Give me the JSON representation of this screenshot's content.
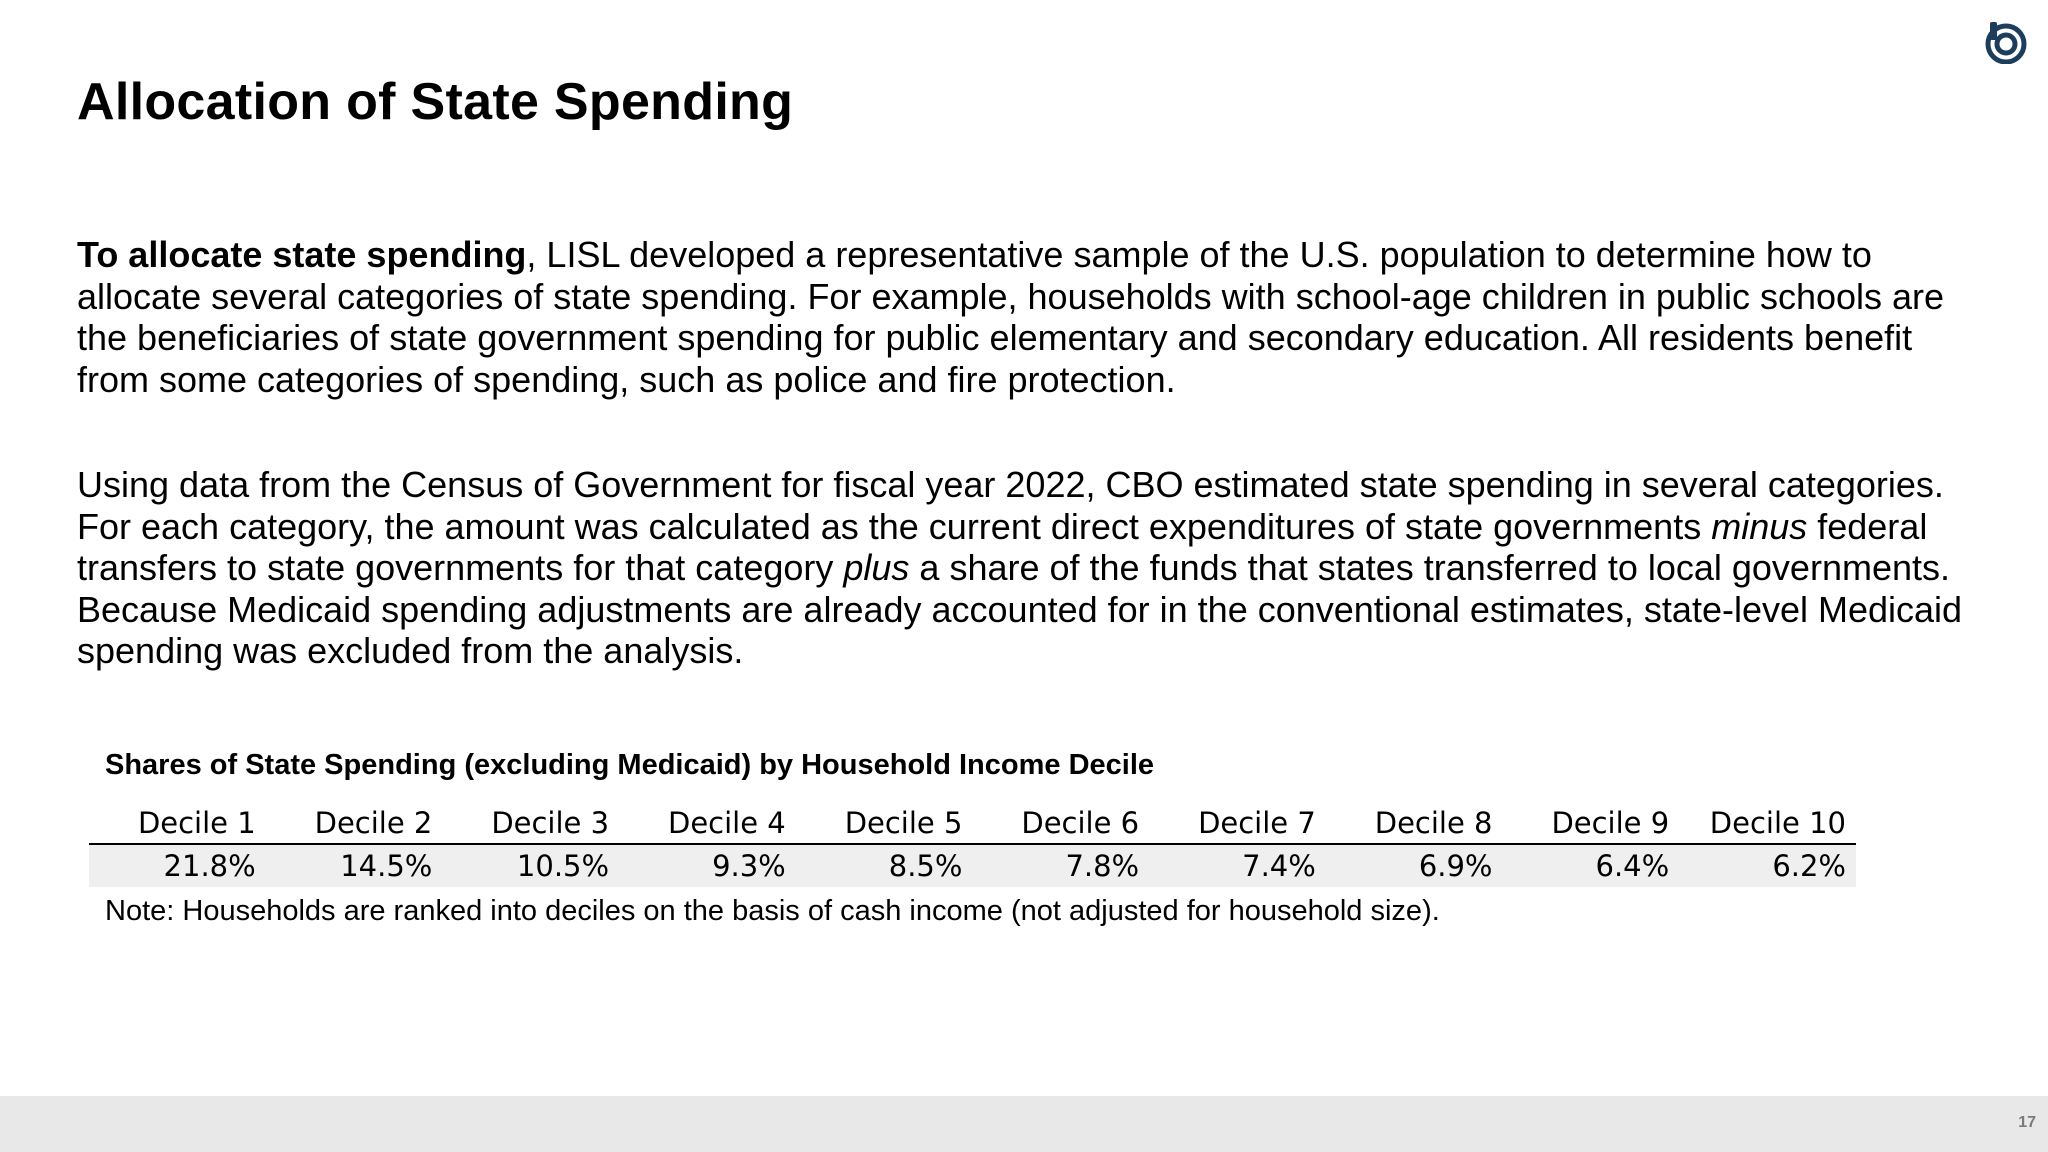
{
  "slide": {
    "title": "Allocation of State Spending",
    "page_number": "17"
  },
  "paragraph1": {
    "bold_lead": "To allocate state spending",
    "text": ", LISL developed a representative sample of the U.S. population to determine how to allocate several categories of state spending. For example, households with school-age children in public schools are the beneficiaries of state government spending for public elementary and secondary education. All residents benefit from some categories of spending, such as police and fire protection."
  },
  "paragraph2": {
    "part1": "Using data from the Census of Government for fiscal year 2022, CBO estimated state spending in several categories. For each category, the amount was calculated as the current direct expenditures of state governments ",
    "italic1": "minus",
    "part2": " federal transfers to state governments for that category ",
    "italic2": "plus",
    "part3": " a share of the funds that states transferred to local governments. Because Medicaid spending adjustments are already accounted for in the conventional estimates, state-level Medicaid spending was excluded from the analysis."
  },
  "table": {
    "title": "Shares of State Spending (excluding Medicaid) by Household Income Decile",
    "headers": [
      "Decile 1",
      "Decile 2",
      "Decile 3",
      "Decile 4",
      "Decile 5",
      "Decile 6",
      "Decile 7",
      "Decile 8",
      "Decile 9",
      "Decile 10"
    ],
    "values": [
      "21.8%",
      "14.5%",
      "10.5%",
      "9.3%",
      "8.5%",
      "7.8%",
      "7.4%",
      "6.9%",
      "6.4%",
      "6.2%"
    ],
    "note": "Note: Households are ranked into deciles on the basis of cash income (not adjusted for household size)."
  },
  "colors": {
    "logo": "#1d3d5c",
    "footer": "#e8e8e8",
    "row_shade": "#efefef"
  },
  "icons": {
    "logo": "circle-logo-icon"
  }
}
